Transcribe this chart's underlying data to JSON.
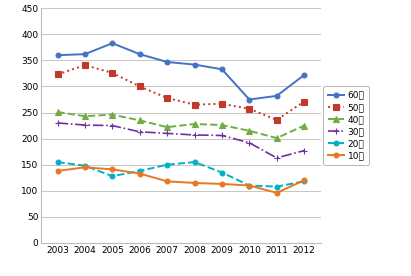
{
  "years": [
    2003,
    2004,
    2005,
    2006,
    2007,
    2008,
    2009,
    2010,
    2011,
    2012
  ],
  "series": {
    "60대": [
      360,
      362,
      383,
      362,
      347,
      342,
      333,
      275,
      282,
      322
    ],
    "50대": [
      323,
      341,
      326,
      300,
      278,
      265,
      267,
      257,
      236,
      271
    ],
    "40대": [
      251,
      243,
      246,
      235,
      222,
      228,
      226,
      215,
      201,
      225
    ],
    "30대": [
      230,
      226,
      225,
      213,
      210,
      207,
      206,
      192,
      163,
      177
    ],
    "20대": [
      155,
      148,
      128,
      138,
      150,
      155,
      135,
      110,
      108,
      118
    ],
    "10대": [
      138,
      145,
      141,
      133,
      118,
      115,
      113,
      110,
      96,
      120
    ]
  },
  "line_styles": {
    "60대": {
      "color": "#4472C4",
      "linestyle": "-",
      "marker": "o",
      "markersize": 3.5,
      "linewidth": 1.4,
      "markerfacecolor": "#4472C4"
    },
    "50대": {
      "color": "#C0392B",
      "linestyle": ":",
      "marker": "s",
      "markersize": 4.0,
      "linewidth": 1.4,
      "markerfacecolor": "#C0392B"
    },
    "40대": {
      "color": "#70AD47",
      "linestyle": "--",
      "marker": "^",
      "markersize": 4.0,
      "linewidth": 1.4,
      "markerfacecolor": "#70AD47"
    },
    "30대": {
      "color": "#7030A0",
      "linestyle": "-.",
      "marker": "+",
      "markersize": 5.0,
      "linewidth": 1.2,
      "markerfacecolor": "#7030A0"
    },
    "20대": {
      "color": "#00B0C8",
      "linestyle": "--",
      "marker": "o",
      "markersize": 3.5,
      "linewidth": 1.4,
      "markerfacecolor": "#00B0C8"
    },
    "10대": {
      "color": "#E87722",
      "linestyle": "-",
      "marker": "o",
      "markersize": 3.5,
      "linewidth": 1.4,
      "markerfacecolor": "#E87722"
    }
  },
  "ylim": [
    0,
    450
  ],
  "yticks": [
    0,
    50,
    100,
    150,
    200,
    250,
    300,
    350,
    400,
    450
  ],
  "bg_color": "#FFFFFF",
  "grid_color": "#BBBBBB",
  "legend_labels": [
    "60대",
    "50대",
    "40대",
    "30대",
    "20대",
    "10대"
  ],
  "xlim_left": 2002.4,
  "xlim_right": 2012.6
}
